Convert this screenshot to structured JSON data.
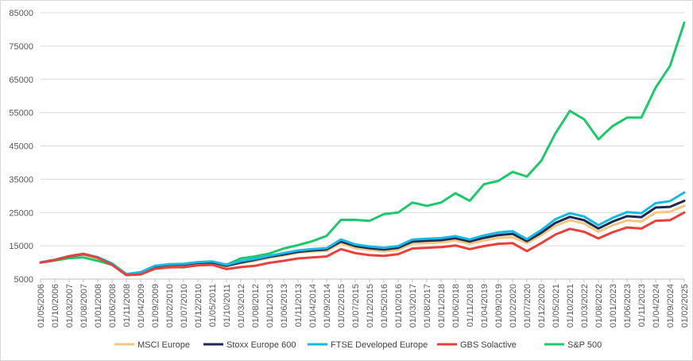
{
  "chart_data": {
    "type": "line",
    "title": "",
    "xlabel": "",
    "ylabel": "",
    "ylim": [
      5000,
      85000
    ],
    "yticks": [
      5000,
      15000,
      25000,
      35000,
      45000,
      55000,
      65000,
      75000,
      85000
    ],
    "ytick_labels": [
      "5000",
      "15000",
      "25000",
      "35000",
      "45000",
      "55000",
      "65000",
      "75000",
      "85000"
    ],
    "grid": "horizontal",
    "legend_position": "bottom",
    "xticks": [
      "01/05/2006",
      "01/10/2006",
      "01/03/2007",
      "01/08/2007",
      "01/01/2008",
      "01/06/2008",
      "01/11/2008",
      "01/04/2009",
      "01/09/2009",
      "01/02/2010",
      "01/07/2010",
      "01/12/2010",
      "01/05/2011",
      "01/10/2011",
      "01/03/2012",
      "01/08/2012",
      "01/01/2013",
      "01/06/2013",
      "01/11/2013",
      "01/04/2014",
      "01/09/2014",
      "01/02/2015",
      "01/07/2015",
      "01/12/2015",
      "01/05/2016",
      "01/10/2016",
      "01/03/2017",
      "01/08/2017",
      "01/01/2018",
      "01/06/2018",
      "01/11/2018",
      "01/04/2019",
      "01/09/2019",
      "01/02/2020",
      "01/07/2020",
      "01/12/2020",
      "01/05/2021",
      "01/10/2021",
      "01/03/2022",
      "01/08/2022",
      "01/01/2023",
      "01/06/2023",
      "01/11/2023",
      "01/04/2024",
      "01/09/2024",
      "01/02/2025"
    ],
    "x": [
      "01/05/2006",
      "01/10/2006",
      "01/03/2007",
      "01/08/2007",
      "01/01/2008",
      "01/06/2008",
      "01/11/2008",
      "01/04/2009",
      "01/09/2009",
      "01/02/2010",
      "01/07/2010",
      "01/12/2010",
      "01/05/2011",
      "01/10/2011",
      "01/03/2012",
      "01/08/2012",
      "01/01/2013",
      "01/06/2013",
      "01/11/2013",
      "01/04/2014",
      "01/09/2014",
      "01/02/2015",
      "01/07/2015",
      "01/12/2015",
      "01/05/2016",
      "01/10/2016",
      "01/03/2017",
      "01/08/2017",
      "01/01/2018",
      "01/06/2018",
      "01/11/2018",
      "01/04/2019",
      "01/09/2019",
      "01/02/2020",
      "01/07/2020",
      "01/12/2020",
      "01/05/2021",
      "01/10/2021",
      "01/03/2022",
      "01/08/2022",
      "01/01/2023",
      "01/06/2023",
      "01/11/2023",
      "01/04/2024",
      "01/09/2024",
      "01/02/2025"
    ],
    "series": [
      {
        "name": "MSCI Europe",
        "color": "#f5c77e",
        "values": [
          10000,
          10800,
          11800,
          12300,
          11300,
          9500,
          6500,
          6900,
          8600,
          9100,
          9200,
          9700,
          9800,
          8800,
          9800,
          10500,
          11400,
          12100,
          12900,
          13300,
          13500,
          15800,
          14300,
          13800,
          13300,
          13800,
          15700,
          15800,
          16000,
          16600,
          15600,
          16600,
          17400,
          17600,
          15800,
          18200,
          21000,
          22700,
          21700,
          19200,
          21200,
          22600,
          22300,
          25000,
          25200,
          27000
        ]
      },
      {
        "name": "Stoxx Europe 600",
        "color": "#1f2a52",
        "values": [
          10000,
          10800,
          11800,
          12500,
          11500,
          9600,
          6500,
          7000,
          8800,
          9300,
          9400,
          9900,
          10000,
          9000,
          10000,
          10800,
          11700,
          12400,
          13200,
          13600,
          13900,
          16300,
          14900,
          14300,
          13900,
          14400,
          16300,
          16500,
          16700,
          17300,
          16300,
          17400,
          18200,
          18600,
          16400,
          18900,
          21900,
          23700,
          22700,
          20200,
          22300,
          23900,
          23600,
          26500,
          26700,
          28500
        ]
      },
      {
        "name": "FTSE Developed Europe",
        "color": "#19b9e6",
        "values": [
          10000,
          10800,
          11900,
          12600,
          11600,
          9700,
          6500,
          7100,
          9000,
          9500,
          9600,
          10100,
          10300,
          9300,
          10400,
          11100,
          12000,
          12800,
          13600,
          14000,
          14300,
          16900,
          15400,
          14800,
          14400,
          14900,
          16900,
          17100,
          17300,
          17900,
          16900,
          18100,
          19000,
          19400,
          17000,
          19700,
          23000,
          24800,
          23800,
          21200,
          23400,
          25100,
          24800,
          27800,
          28400,
          31000
        ]
      },
      {
        "name": "GBS Solactive",
        "color": "#e8413c",
        "values": [
          10000,
          10700,
          11900,
          12600,
          11400,
          9300,
          6200,
          6400,
          8100,
          8500,
          8600,
          9100,
          9300,
          8000,
          8600,
          9000,
          9900,
          10500,
          11200,
          11500,
          11800,
          14000,
          12800,
          12200,
          12000,
          12500,
          14200,
          14400,
          14600,
          15100,
          14000,
          14900,
          15600,
          15800,
          13400,
          15800,
          18400,
          20100,
          19200,
          17200,
          19100,
          20500,
          20200,
          22500,
          22700,
          25000
        ]
      },
      {
        "name": "S&P 500",
        "color": "#1dc96a",
        "values": [
          10000,
          10600,
          11300,
          11500,
          10500,
          9300,
          6300,
          7000,
          8100,
          8700,
          8500,
          9400,
          10000,
          9300,
          11200,
          11800,
          12700,
          14200,
          15200,
          16400,
          18000,
          22800,
          22800,
          22500,
          24500,
          25000,
          28000,
          27000,
          28000,
          30800,
          28500,
          33500,
          34500,
          37200,
          35800,
          40500,
          48800,
          55500,
          53000,
          47000,
          51000,
          53500,
          53500,
          62500,
          69000,
          82000
        ]
      }
    ]
  }
}
